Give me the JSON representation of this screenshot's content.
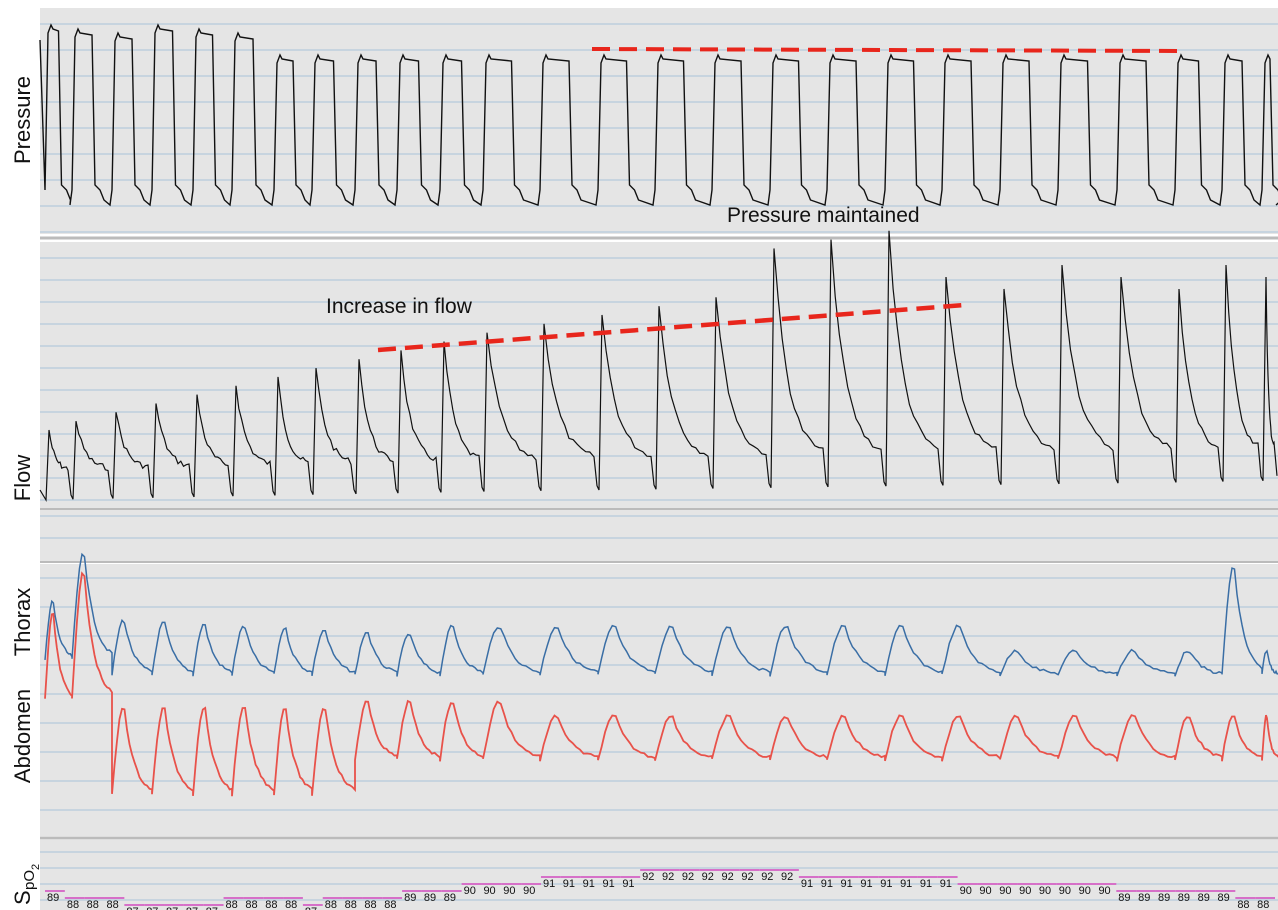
{
  "labels": {
    "pressure": "Pressure",
    "flow": "Flow",
    "thorax": "Thorax",
    "abdomen": "Abdomen",
    "spo2": {
      "base": "S",
      "sub": "pO",
      "subsub": "2"
    }
  },
  "annotations": {
    "pressure": "Pressure maintained",
    "flow": "Increase in flow"
  },
  "spo2_values": [
    89,
    88,
    88,
    88,
    87,
    87,
    87,
    87,
    87,
    88,
    88,
    88,
    88,
    87,
    88,
    88,
    88,
    88,
    89,
    89,
    89,
    90,
    90,
    90,
    90,
    91,
    91,
    91,
    91,
    91,
    92,
    92,
    92,
    92,
    92,
    92,
    92,
    92,
    91,
    91,
    91,
    91,
    91,
    91,
    91,
    91,
    90,
    90,
    90,
    90,
    90,
    90,
    90,
    90,
    89,
    89,
    89,
    89,
    89,
    89,
    88,
    88
  ]
}
